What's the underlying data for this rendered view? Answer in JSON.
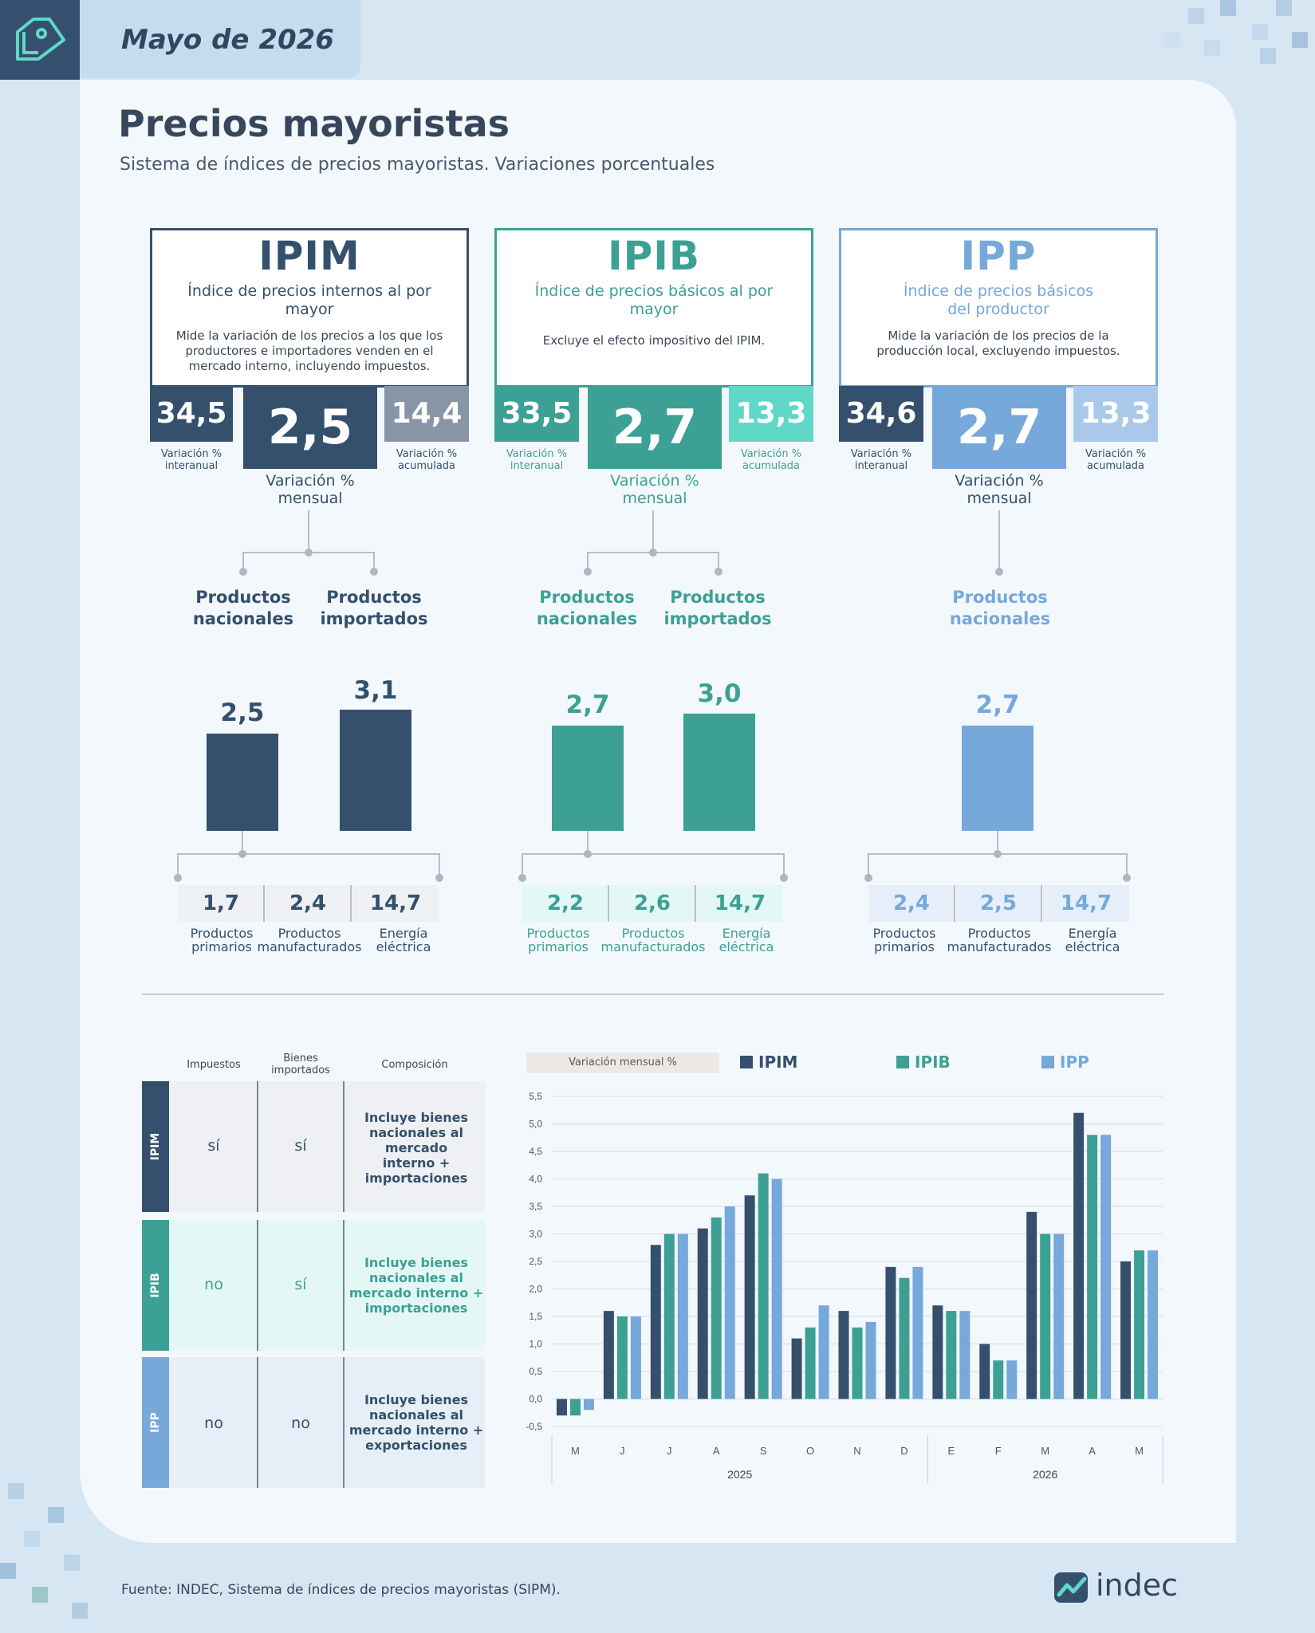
{
  "header": {
    "date": "Mayo de 2026"
  },
  "title": "Precios mayoristas",
  "subtitle": "Sistema de índices de precios mayoristas. Variaciones porcentuales",
  "colors": {
    "ipim": "#34506c",
    "ipib": "#3da094",
    "ipp": "#76a8da",
    "ipim_light": "#8795a6",
    "ipib_light": "#5fd8c8",
    "ipp_light": "#a9c8ea"
  },
  "indices": [
    {
      "code": "IPIM",
      "name": "Índice de precios internos al por mayor",
      "description": "Mide la variación de los precios a los que los productores e importadores venden en el mercado interno, incluyendo impuestos.",
      "interanual": "34,5",
      "mensual": "2,5",
      "acumulada": "14,4",
      "lbl_interanual": "Variación % interanual",
      "lbl_mensual": "Variación % mensual",
      "lbl_acumulada": "Variación % acumulada",
      "subs": [
        {
          "name": "Productos nacionales",
          "value": "2,5"
        },
        {
          "name": "Productos importados",
          "value": "3,1"
        }
      ],
      "components": [
        {
          "name": "Productos primarios",
          "value": "1,7"
        },
        {
          "name": "Productos manufacturados",
          "value": "2,4"
        },
        {
          "name": "Energía eléctrica",
          "value": "14,7"
        }
      ]
    },
    {
      "code": "IPIB",
      "name": "Índice de precios básicos al por mayor",
      "description": "Excluye el efecto impositivo del IPIM.",
      "interanual": "33,5",
      "mensual": "2,7",
      "acumulada": "13,3",
      "lbl_interanual": "Variación % interanual",
      "lbl_mensual": "Variación % mensual",
      "lbl_acumulada": "Variación % acumulada",
      "subs": [
        {
          "name": "Productos nacionales",
          "value": "2,7"
        },
        {
          "name": "Productos importados",
          "value": "3,0"
        }
      ],
      "components": [
        {
          "name": "Productos primarios",
          "value": "2,2"
        },
        {
          "name": "Productos manufacturados",
          "value": "2,6"
        },
        {
          "name": "Energía eléctrica",
          "value": "14,7"
        }
      ]
    },
    {
      "code": "IPP",
      "name": "Índice de precios básicos del productor",
      "description": "Mide la variación de los precios de la producción local, excluyendo impuestos.",
      "interanual": "34,6",
      "mensual": "2,7",
      "acumulada": "13,3",
      "lbl_interanual": "Variación % interanual",
      "lbl_mensual": "Variación % mensual",
      "lbl_acumulada": "Variación % acumulada",
      "subs": [
        {
          "name": "Productos nacionales",
          "value": "2,7"
        }
      ],
      "components": [
        {
          "name": "Productos primarios",
          "value": "2,4"
        },
        {
          "name": "Productos manufacturados",
          "value": "2,5"
        },
        {
          "name": "Energía eléctrica",
          "value": "14,7"
        }
      ]
    }
  ],
  "comparison": {
    "headers": [
      "Impuestos",
      "Bienes importados",
      "Composición"
    ],
    "rows": [
      {
        "code": "IPIM",
        "impuestos": "sí",
        "importados": "sí",
        "composicion": "Incluye bienes nacionales al mercado interno + importaciones"
      },
      {
        "code": "IPIB",
        "impuestos": "no",
        "importados": "sí",
        "composicion": "Incluye bienes nacionales al mercado interno + importaciones"
      },
      {
        "code": "IPP",
        "impuestos": "no",
        "importados": "no",
        "composicion": "Incluye bienes nacionales al mercado interno + exportaciones"
      }
    ]
  },
  "chart_data": {
    "type": "bar",
    "title": "Variación mensual %",
    "categories": [
      "M",
      "J",
      "J",
      "A",
      "S",
      "O",
      "N",
      "D",
      "E",
      "F",
      "M",
      "A",
      "M"
    ],
    "year_groups": [
      {
        "label": "2025",
        "from": 0,
        "to": 7
      },
      {
        "label": "2026",
        "from": 8,
        "to": 12
      }
    ],
    "series": [
      {
        "name": "IPIM",
        "values": [
          -0.3,
          1.6,
          2.8,
          3.1,
          3.7,
          1.1,
          1.6,
          2.4,
          1.7,
          1.0,
          3.4,
          5.2,
          2.5
        ]
      },
      {
        "name": "IPIB",
        "values": [
          -0.3,
          1.5,
          3.0,
          3.3,
          4.1,
          1.3,
          1.3,
          2.2,
          1.6,
          0.7,
          3.0,
          4.8,
          2.7
        ]
      },
      {
        "name": "IPP",
        "values": [
          -0.2,
          1.5,
          3.0,
          3.5,
          4.0,
          1.7,
          1.4,
          2.4,
          1.6,
          0.7,
          3.0,
          4.8,
          2.7
        ]
      }
    ],
    "ylim": [
      -0.5,
      5.5
    ],
    "yticks": [
      "5,5",
      "5,0",
      "4,5",
      "4,0",
      "3,5",
      "3,0",
      "2,5",
      "2,0",
      "1,5",
      "1,0",
      "0,5",
      "0,0",
      "-0,5"
    ],
    "legend": "top",
    "grid": true
  },
  "footer": {
    "source": "Fuente: INDEC, Sistema de índices de precios mayoristas (SIPM).",
    "logo": "indec"
  }
}
